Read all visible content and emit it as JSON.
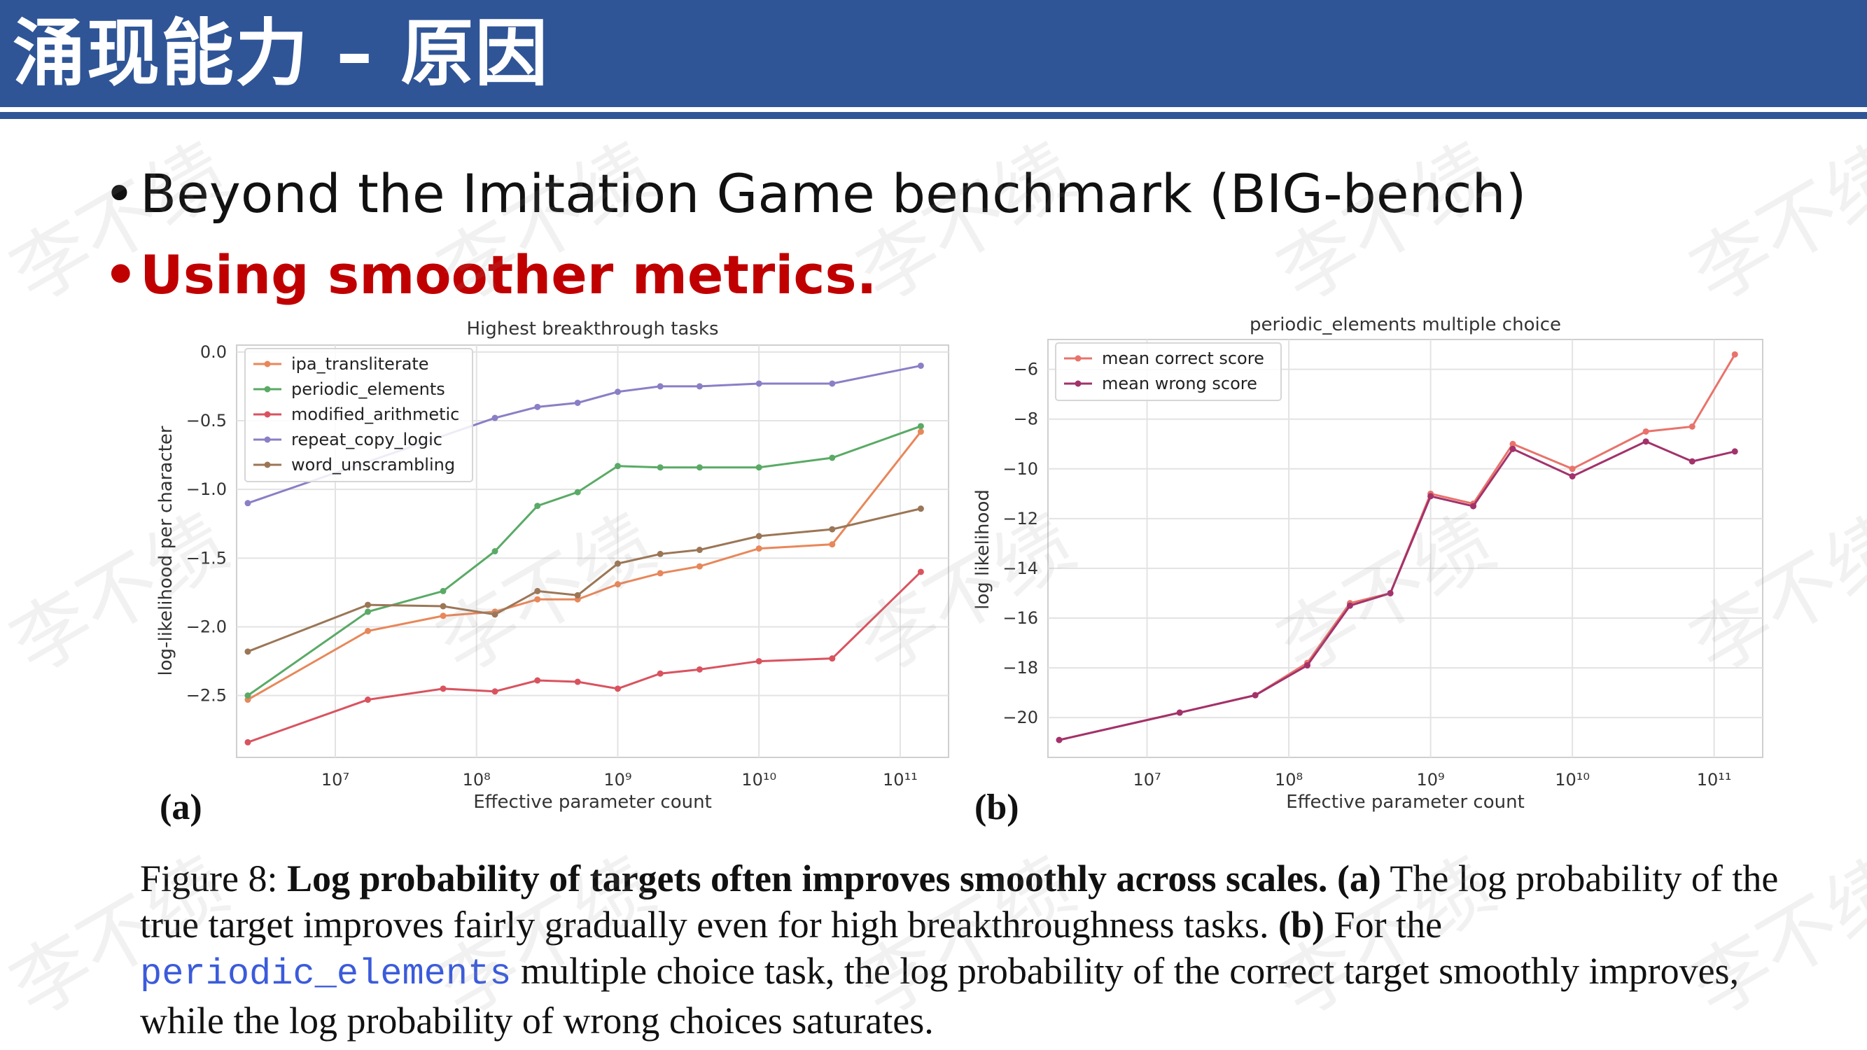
{
  "slide": {
    "title": "涌现能力 – 原因",
    "bullets": [
      {
        "text": "Beyond the Imitation Game benchmark (BIG-bench)",
        "color": "#111111"
      },
      {
        "text": "Using smoother metrics.",
        "color": "#c00000"
      }
    ],
    "bullet_symbol": "•",
    "watermark": "李不绩"
  },
  "panel_labels": [
    "(a)",
    "(b)"
  ],
  "caption": {
    "prefix": "Figure 8: ",
    "bold_1": "Log probability of targets often improves smoothly across scales.",
    "a_label": "(a)",
    "text_a": " The log probability of the true target improves fairly gradually even for high breakthroughness tasks. ",
    "b_label": "(b)",
    "text_b1": " For the ",
    "code": "periodic_elements",
    "text_b2": " multiple choice task, the log probability of the correct target smoothly improves, while the log probability of wrong choices saturates."
  },
  "chart_data": [
    {
      "type": "line",
      "title": "Highest breakthrough tasks",
      "xlabel": "Effective parameter count",
      "ylabel": "log-likelihood per character",
      "xscale": "log",
      "xticks": [
        "10⁷",
        "10⁸",
        "10⁹",
        "10¹⁰",
        "10¹¹"
      ],
      "yticks": [
        "0.0",
        "−0.5",
        "−1.0",
        "−1.5",
        "−2.0",
        "−2.5"
      ],
      "xlim": [
        2000000.0,
        220000000000.0
      ],
      "ylim": [
        -2.95,
        0.05
      ],
      "grid": true,
      "legend_position": "upper-left",
      "series": [
        {
          "name": "ipa_transliterate",
          "color": "#e8875a",
          "x": [
            2400000.0,
            17000000.0,
            58000000.0,
            135000000.0,
            270000000.0,
            520000000.0,
            1000000000.0,
            2000000000.0,
            3800000000.0,
            10000000000.0,
            33000000000.0,
            140000000000.0
          ],
          "values": [
            -2.53,
            -2.03,
            -1.92,
            -1.89,
            -1.8,
            -1.8,
            -1.69,
            -1.61,
            -1.56,
            -1.43,
            -1.4,
            -0.58
          ]
        },
        {
          "name": "periodic_elements",
          "color": "#5aaa66",
          "x": [
            2400000.0,
            17000000.0,
            58000000.0,
            135000000.0,
            270000000.0,
            520000000.0,
            1000000000.0,
            2000000000.0,
            3800000000.0,
            10000000000.0,
            33000000000.0,
            140000000000.0
          ],
          "values": [
            -2.5,
            -1.89,
            -1.74,
            -1.45,
            -1.12,
            -1.02,
            -0.83,
            -0.84,
            -0.84,
            -0.84,
            -0.77,
            -0.54
          ]
        },
        {
          "name": "modified_arithmetic",
          "color": "#d9535f",
          "x": [
            2400000.0,
            17000000.0,
            58000000.0,
            135000000.0,
            270000000.0,
            520000000.0,
            1000000000.0,
            2000000000.0,
            3800000000.0,
            10000000000.0,
            33000000000.0,
            140000000000.0
          ],
          "values": [
            -2.84,
            -2.53,
            -2.45,
            -2.47,
            -2.39,
            -2.4,
            -2.45,
            -2.34,
            -2.31,
            -2.25,
            -2.23,
            -1.6
          ]
        },
        {
          "name": "repeat_copy_logic",
          "color": "#8a7fc6",
          "x": [
            2400000.0,
            135000000.0,
            270000000.0,
            520000000.0,
            1000000000.0,
            2000000000.0,
            3800000000.0,
            10000000000.0,
            33000000000.0,
            140000000000.0
          ],
          "values": [
            -1.1,
            -0.48,
            -0.4,
            -0.37,
            -0.29,
            -0.25,
            -0.25,
            -0.23,
            -0.23,
            -0.1
          ]
        },
        {
          "name": "word_unscrambling",
          "color": "#9b7656",
          "x": [
            2400000.0,
            17000000.0,
            58000000.0,
            135000000.0,
            270000000.0,
            520000000.0,
            1000000000.0,
            2000000000.0,
            3800000000.0,
            10000000000.0,
            33000000000.0,
            140000000000.0
          ],
          "values": [
            -2.18,
            -1.84,
            -1.85,
            -1.91,
            -1.74,
            -1.77,
            -1.54,
            -1.47,
            -1.44,
            -1.34,
            -1.29,
            -1.14
          ]
        }
      ]
    },
    {
      "type": "line",
      "title": "periodic_elements multiple choice",
      "xlabel": "Effective parameter count",
      "ylabel": "log likelihood",
      "xscale": "log",
      "xticks": [
        "10⁷",
        "10⁸",
        "10⁹",
        "10¹⁰",
        "10¹¹"
      ],
      "yticks": [
        "−6",
        "−8",
        "−10",
        "−12",
        "−14",
        "−16",
        "−18",
        "−20"
      ],
      "xlim": [
        2000000.0,
        220000000000.0
      ],
      "ylim": [
        -21.6,
        -4.8
      ],
      "grid": true,
      "legend_position": "upper-left",
      "series": [
        {
          "name": "mean correct score",
          "color": "#e8736b",
          "x": [
            2400000.0,
            17000000.0,
            58000000.0,
            135000000.0,
            270000000.0,
            520000000.0,
            1000000000.0,
            2000000000.0,
            3800000000.0,
            10000000000.0,
            33000000000.0,
            70000000000.0,
            140000000000.0
          ],
          "values": [
            -20.9,
            -19.8,
            -19.1,
            -17.8,
            -15.4,
            -15.0,
            -11.0,
            -11.4,
            -9.0,
            -10.0,
            -8.5,
            -8.3,
            -5.4
          ]
        },
        {
          "name": "mean wrong score",
          "color": "#a2326b",
          "x": [
            2400000.0,
            17000000.0,
            58000000.0,
            135000000.0,
            270000000.0,
            520000000.0,
            1000000000.0,
            2000000000.0,
            3800000000.0,
            10000000000.0,
            33000000000.0,
            70000000000.0,
            140000000000.0
          ],
          "values": [
            -20.9,
            -19.8,
            -19.1,
            -17.9,
            -15.5,
            -15.0,
            -11.1,
            -11.5,
            -9.2,
            -10.3,
            -8.9,
            -9.7,
            -9.3
          ]
        }
      ]
    }
  ]
}
